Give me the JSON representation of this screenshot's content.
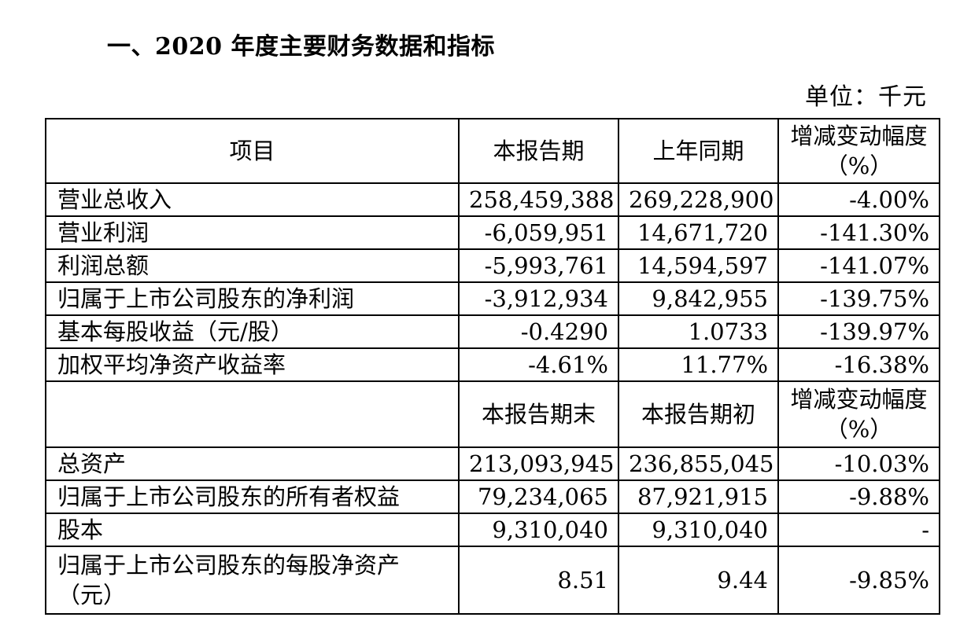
{
  "heading": "一、2020 年度主要财务数据和指标",
  "unit": "单位：千元",
  "table1": {
    "headers": [
      "项目",
      "本报告期",
      "上年同期",
      "增减变动幅度（%）"
    ],
    "rows": [
      [
        "营业总收入",
        "258,459,388",
        "269,228,900",
        "-4.00%"
      ],
      [
        "营业利润",
        "-6,059,951",
        "14,671,720",
        "-141.30%"
      ],
      [
        "利润总额",
        "-5,993,761",
        "14,594,597",
        "-141.07%"
      ],
      [
        "归属于上市公司股东的净利润",
        "-3,912,934",
        "9,842,955",
        "-139.75%"
      ],
      [
        "基本每股收益（元/股）",
        "-0.4290",
        "1.0733",
        "-139.97%"
      ],
      [
        "加权平均净资产收益率",
        "-4.61%",
        "11.77%",
        "-16.38%"
      ]
    ]
  },
  "table2": {
    "headers": [
      "",
      "本报告期末",
      "本报告期初",
      "增减变动幅度（%）"
    ],
    "rows": [
      [
        "总资产",
        "213,093,945",
        "236,855,045",
        "-10.03%"
      ],
      [
        "归属于上市公司股东的所有者权益",
        "79,234,065",
        "87,921,915",
        "-9.88%"
      ],
      [
        "股本",
        "9,310,040",
        "9,310,040",
        "-"
      ],
      [
        "归属于上市公司股东的每股净资产（元）",
        "8.51",
        "9.44",
        "-9.85%"
      ]
    ]
  }
}
